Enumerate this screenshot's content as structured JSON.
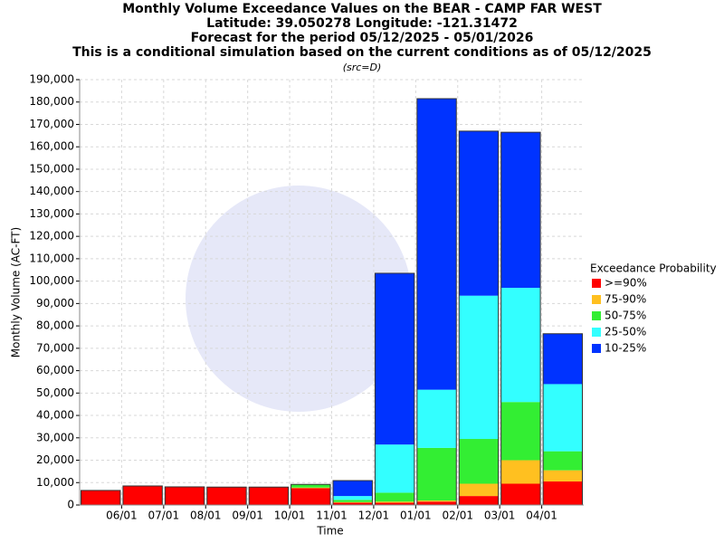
{
  "chart_data": {
    "type": "stacked_bar",
    "title": [
      "Monthly Volume Exceedance Values on the BEAR - CAMP FAR WEST",
      "Latitude: 39.050278 Longitude: -121.31472",
      "Forecast for the period 05/12/2025 - 05/01/2026",
      "This is a conditional simulation based on the current conditions as of 05/12/2025"
    ],
    "subtitle": "(src=D)",
    "x_label": "Time",
    "y_label": "Monthly Volume (AC-FT)",
    "legend_title": "Exceedance Probability",
    "legend": "right",
    "grid": true,
    "categories": [
      null,
      null,
      null,
      null,
      null,
      null,
      null,
      null,
      null,
      null,
      null,
      null
    ],
    "xtick_labels": [
      "06/01",
      "07/01",
      "08/01",
      "09/01",
      "10/01",
      "11/01",
      "12/01",
      "01/01",
      "02/01",
      "03/01",
      "04/01"
    ],
    "series": [
      {
        "name": ">=90%",
        "color": "#ff0000",
        "values": [
          6500,
          8500,
          8100,
          8000,
          8000,
          7500,
          1000,
          1000,
          1500,
          4000,
          9500,
          10500
        ]
      },
      {
        "name": "75-90%",
        "color": "#ffc020",
        "values": [
          0,
          0,
          0,
          0,
          0,
          300,
          300,
          500,
          500,
          5500,
          10500,
          5000
        ]
      },
      {
        "name": "50-75%",
        "color": "#33ee33",
        "values": [
          0,
          0,
          0,
          0,
          0,
          1400,
          1000,
          4000,
          23500,
          20000,
          26000,
          8500
        ]
      },
      {
        "name": "25-50%",
        "color": "#33ffff",
        "values": [
          0,
          0,
          0,
          0,
          0,
          0,
          1700,
          21500,
          26000,
          64000,
          51000,
          30000
        ]
      },
      {
        "name": "10-25%",
        "color": "#0033ff",
        "values": [
          0,
          0,
          0,
          0,
          0,
          0,
          6900,
          76500,
          130000,
          73500,
          69500,
          22500
        ]
      }
    ],
    "ylim": [
      0,
      190000
    ],
    "yticks": [
      0,
      {
        "value": 10000,
        "label": "10,000"
      },
      {
        "value": 20000,
        "label": "20,000"
      },
      {
        "value": 30000,
        "label": "30,000"
      },
      {
        "value": 40000,
        "label": "40,000"
      },
      {
        "value": 50000,
        "label": "50,000"
      },
      {
        "value": 60000,
        "label": "60,000"
      },
      {
        "value": 70000,
        "label": "70,000"
      },
      {
        "value": 80000,
        "label": "80,000"
      },
      {
        "value": 90000,
        "label": "90,000"
      },
      {
        "value": 100000,
        "label": "100,000"
      },
      {
        "value": 110000,
        "label": "110,000"
      },
      {
        "value": 120000,
        "label": "120,000"
      },
      {
        "value": 130000,
        "label": "130,000"
      },
      {
        "value": 140000,
        "label": "140,000"
      },
      {
        "value": 150000,
        "label": "150,000"
      },
      {
        "value": 160000,
        "label": "160,000"
      },
      {
        "value": 170000,
        "label": "170,000"
      },
      {
        "value": 180000,
        "label": "180,000"
      },
      {
        "value": 190000,
        "label": "190,000"
      }
    ]
  }
}
